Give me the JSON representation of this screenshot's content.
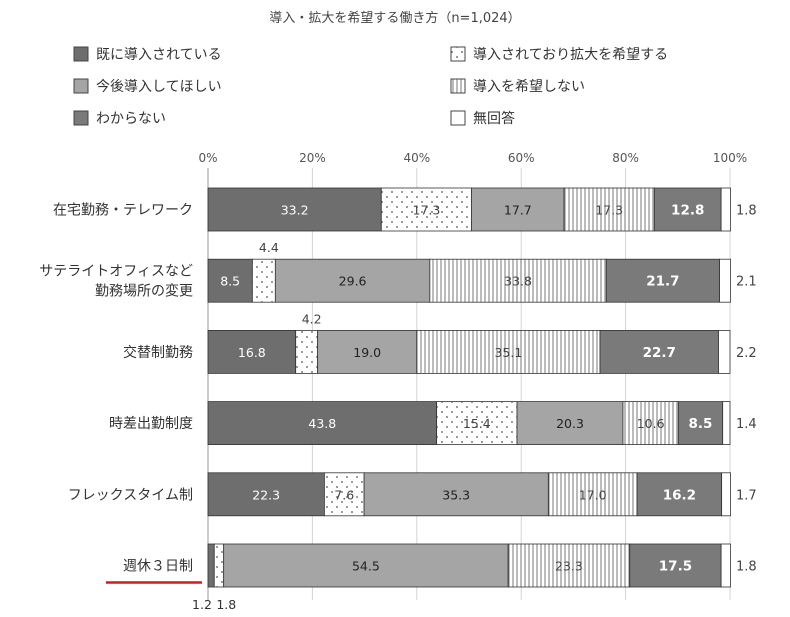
{
  "chart_data": {
    "type": "bar",
    "orientation": "horizontal",
    "stacked": true,
    "title": "導入・拡大を希望する働き方（n=1,024）",
    "x_ticks": [
      "0%",
      "20%",
      "40%",
      "60%",
      "80%",
      "100%"
    ],
    "xlim": [
      0,
      100
    ],
    "grid": true,
    "legend_position": "top",
    "categories": [
      "在宅勤務・テレワーク",
      "サテライトオフィスなど 勤務場所の変更",
      "交替制勤務",
      "時差出勤制度",
      "フレックスタイム制",
      "週休３日制"
    ],
    "highlighted_category": "週休３日制",
    "series": [
      {
        "name": "既に導入されている",
        "values": [
          33.2,
          8.5,
          16.8,
          43.8,
          22.3,
          1.2
        ],
        "color": "#6e6e6e",
        "pattern": "solid"
      },
      {
        "name": "導入されており拡大を希望する",
        "values": [
          17.3,
          4.4,
          4.2,
          15.4,
          7.6,
          1.8
        ],
        "color": "#ffffff",
        "pattern": "dots"
      },
      {
        "name": "今後導入してほしい",
        "values": [
          17.7,
          29.6,
          19.0,
          20.3,
          35.3,
          54.5
        ],
        "color": "#a5a5a5",
        "pattern": "solid"
      },
      {
        "name": "導入を希望しない",
        "values": [
          17.3,
          33.8,
          35.1,
          10.6,
          17.0,
          23.3
        ],
        "color": "#ffffff",
        "pattern": "vlines"
      },
      {
        "name": "わからない",
        "values": [
          12.8,
          21.7,
          22.7,
          8.5,
          16.2,
          17.5
        ],
        "color": "#7a7a7a",
        "pattern": "solid"
      },
      {
        "name": "無回答",
        "values": [
          1.8,
          2.1,
          2.2,
          1.4,
          1.7,
          1.8
        ],
        "color": "#ffffff",
        "pattern": "solid"
      }
    ]
  }
}
